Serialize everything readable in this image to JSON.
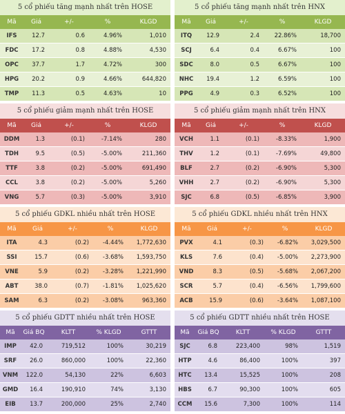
{
  "colors": {
    "green": {
      "title_bg": "#e3f0cd",
      "header": "#96b750",
      "row_a": "#d6e6b6",
      "row_b": "#e8f1d6"
    },
    "red": {
      "title_bg": "#f6dede",
      "header": "#c0504d",
      "row_a": "#eeb8b8",
      "row_b": "#f5d6d6"
    },
    "orange": {
      "title_bg": "#fce8d5",
      "header": "#f79646",
      "row_a": "#fbcda7",
      "row_b": "#fde3cd"
    },
    "purple": {
      "title_bg": "#e4dfee",
      "header": "#8064a2",
      "row_a": "#cdc3e0",
      "row_b": "#e3ddef"
    }
  },
  "headers": {
    "price": [
      "Mã",
      "Giá",
      "+/-",
      "%",
      "KLGD"
    ],
    "gdtt": [
      "Mã",
      "Giá BQ",
      "KLTT",
      "% KLGD",
      "GTTT"
    ]
  },
  "panels": [
    {
      "title": "5 cổ phiếu tăng mạnh nhất trên HOSE",
      "theme": "green",
      "cols": "g5",
      "header": "price",
      "rows": [
        [
          "IFS",
          "12.7",
          "0.6",
          "4.96%",
          "1,010"
        ],
        [
          "FDC",
          "17.2",
          "0.8",
          "4.88%",
          "4,530"
        ],
        [
          "OPC",
          "37.7",
          "1.7",
          "4.72%",
          "300"
        ],
        [
          "HPG",
          "20.2",
          "0.9",
          "4.66%",
          "644,820"
        ],
        [
          "TMP",
          "11.3",
          "0.5",
          "4.63%",
          "10"
        ]
      ]
    },
    {
      "title": "5 cổ phiếu tăng mạnh nhất trên HNX",
      "theme": "green",
      "cols": "g5",
      "header": "price",
      "rows": [
        [
          "ITQ",
          "12.9",
          "2.4",
          "22.86%",
          "18,700"
        ],
        [
          "SCJ",
          "6.4",
          "0.4",
          "6.67%",
          "100"
        ],
        [
          "SDC",
          "8.0",
          "0.5",
          "6.67%",
          "100"
        ],
        [
          "NHC",
          "19.4",
          "1.2",
          "6.59%",
          "100"
        ],
        [
          "PPG",
          "4.9",
          "0.3",
          "6.52%",
          "100"
        ]
      ]
    },
    {
      "title": "5 cổ phiếu giảm mạnh nhất trên HOSE",
      "theme": "red",
      "cols": "g5",
      "header": "price",
      "rows": [
        [
          "DDM",
          "1.3",
          "(0.1)",
          "-7.14%",
          "280"
        ],
        [
          "TDH",
          "9.5",
          "(0.5)",
          "-5.00%",
          "211,360"
        ],
        [
          "TTF",
          "3.8",
          "(0.2)",
          "-5.00%",
          "691,490"
        ],
        [
          "CCL",
          "3.8",
          "(0.2)",
          "-5.00%",
          "5,260"
        ],
        [
          "VNG",
          "5.7",
          "(0.3)",
          "-5.00%",
          "3,910"
        ]
      ]
    },
    {
      "title": "5 cổ phiếu giảm mạnh nhất trên HNX",
      "theme": "red",
      "cols": "g5",
      "header": "price",
      "rows": [
        [
          "VCH",
          "1.1",
          "(0.1)",
          "-8.33%",
          "1,900"
        ],
        [
          "THV",
          "1.2",
          "(0.1)",
          "-7.69%",
          "49,800"
        ],
        [
          "BLF",
          "2.7",
          "(0.2)",
          "-6.90%",
          "5,300"
        ],
        [
          "VHH",
          "2.7",
          "(0.2)",
          "-6.90%",
          "5,300"
        ],
        [
          "SJC",
          "6.8",
          "(0.5)",
          "-6.85%",
          "3,900"
        ]
      ]
    },
    {
      "title": "5 cổ phiếu GDKL nhiều nhất trên HOSE",
      "theme": "orange",
      "cols": "g5-vol",
      "header": "price",
      "rows": [
        [
          "ITA",
          "4.3",
          "(0.2)",
          "-4.44%",
          "1,772,630"
        ],
        [
          "SSI",
          "15.7",
          "(0.6)",
          "-3.68%",
          "1,593,750"
        ],
        [
          "VNE",
          "5.9",
          "(0.2)",
          "-3.28%",
          "1,221,990"
        ],
        [
          "ABT",
          "38.0",
          "(0.7)",
          "-1.81%",
          "1,025,620"
        ],
        [
          "SAM",
          "6.3",
          "(0.2)",
          "-3.08%",
          "963,360"
        ]
      ]
    },
    {
      "title": "5 cổ phiếu GDKL nhiều nhất trên HNX",
      "theme": "orange",
      "cols": "g5-vol",
      "header": "price",
      "rows": [
        [
          "PVX",
          "4.1",
          "(0.3)",
          "-6.82%",
          "3,029,500"
        ],
        [
          "KLS",
          "7.6",
          "(0.4)",
          "-5.00%",
          "2,273,900"
        ],
        [
          "VND",
          "8.3",
          "(0.5)",
          "-5.68%",
          "2,067,200"
        ],
        [
          "SCR",
          "5.7",
          "(0.4)",
          "-6.56%",
          "1,799,600"
        ],
        [
          "ACB",
          "15.9",
          "(0.6)",
          "-3.64%",
          "1,087,100"
        ]
      ]
    },
    {
      "title": "5 cổ phiếu GDTT nhiều nhất trên HOSE",
      "theme": "purple",
      "cols": "g5-gdtt",
      "header": "gdtt",
      "rows": [
        [
          "IMP",
          "42.0",
          "719,512",
          "100%",
          "30,219"
        ],
        [
          "SRF",
          "26.0",
          "860,000",
          "100%",
          "22,360"
        ],
        [
          "VNM",
          "122.0",
          "54,130",
          "22%",
          "6,603"
        ],
        [
          "GMD",
          "16.4",
          "190,910",
          "74%",
          "3,130"
        ],
        [
          "EIB",
          "13.7",
          "200,000",
          "25%",
          "2,740"
        ]
      ]
    },
    {
      "title": "5 cổ phiếu GDTT nhiều nhất trên HOSE",
      "theme": "purple",
      "cols": "g5-gdtt",
      "header": "gdtt",
      "rows": [
        [
          "SJC",
          "6.8",
          "223,400",
          "98%",
          "1,519"
        ],
        [
          "HTP",
          "4.6",
          "86,400",
          "100%",
          "397"
        ],
        [
          "HTC",
          "13.4",
          "15,525",
          "100%",
          "208"
        ],
        [
          "HBS",
          "6.7",
          "90,300",
          "100%",
          "605"
        ],
        [
          "CCM",
          "15.6",
          "7,300",
          "100%",
          "114"
        ]
      ]
    }
  ]
}
